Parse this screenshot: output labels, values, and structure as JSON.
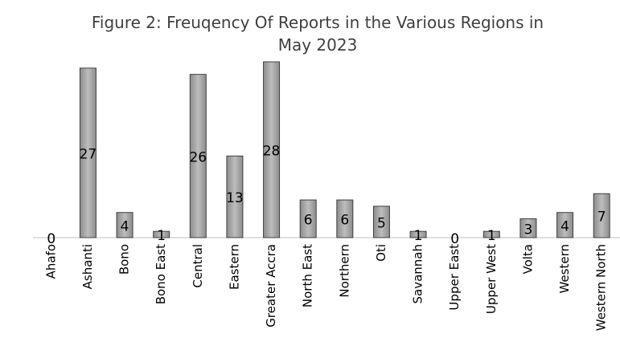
{
  "chart_data": {
    "type": "bar",
    "title": "Figure 2: Freuqency Of Reports in the Various Regions in May 2023",
    "categories": [
      "Ahafo",
      "Ashanti",
      "Bono",
      "Bono  East",
      "Central",
      "Eastern",
      "Greater Accra",
      "North East",
      "Northern",
      "Oti",
      "Savannah",
      "Upper East",
      "Upper West",
      "Volta",
      "Western",
      "Western North"
    ],
    "values": [
      0,
      27,
      4,
      1,
      26,
      13,
      28,
      6,
      6,
      5,
      1,
      0,
      1,
      3,
      4,
      7
    ],
    "color": "#a6a6a6"
  }
}
